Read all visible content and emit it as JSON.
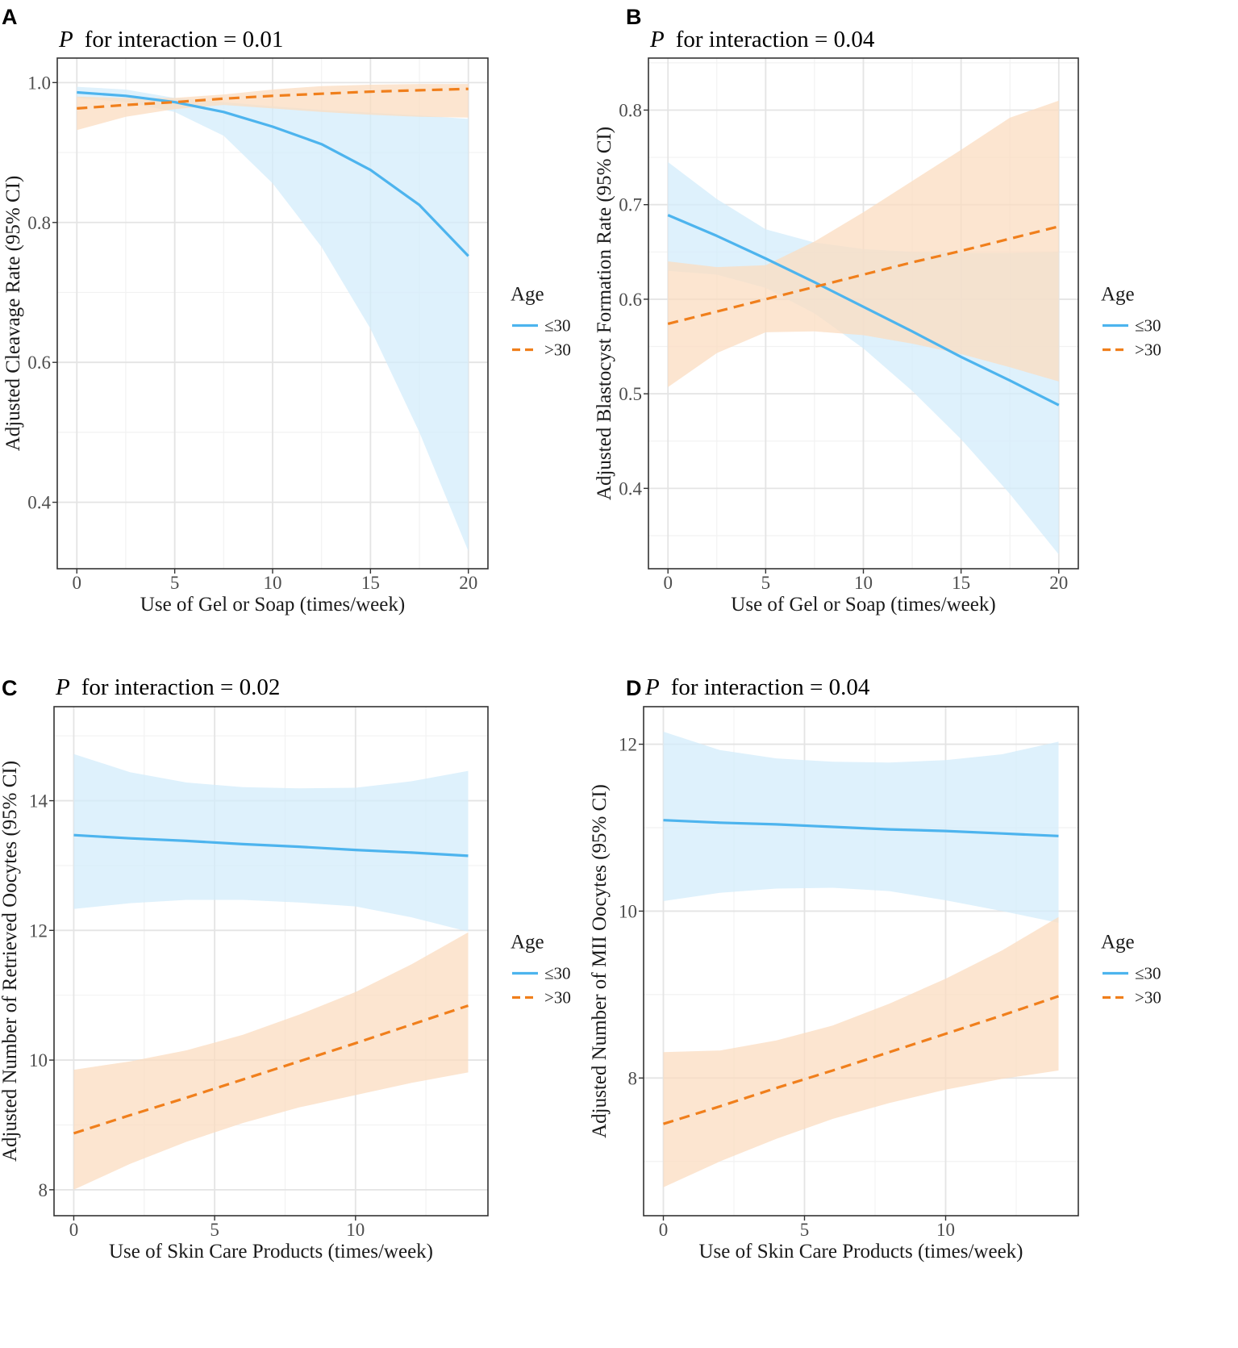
{
  "colors": {
    "young_line": "#4db4ee",
    "young_band": "#d3ecfb",
    "old_line": "#f07f1c",
    "old_band": "#fbdcc0",
    "grid_major": "#e4e4e4",
    "grid_minor": "#f2f2f2",
    "frame": "#333333"
  },
  "chart_data": [
    {
      "panel": "A",
      "type": "line",
      "title_italic": "P",
      "title_rest": "for interaction = 0.01",
      "xlabel": "Use of Gel or Soap (times/week)",
      "ylabel": "Adjusted Cleavage Rate (95% CI)",
      "xlim": [
        -1,
        21
      ],
      "ylim": [
        0.305,
        1.035
      ],
      "xticks": [
        0,
        5,
        10,
        15,
        20
      ],
      "xtick_labels": [
        "0",
        "5",
        "10",
        "15",
        "20"
      ],
      "yticks": [
        0.4,
        0.6,
        0.8,
        1.0
      ],
      "ytick_labels": [
        "0.4",
        "0.6",
        "0.8",
        "1.0"
      ],
      "legend": {
        "title": "Age",
        "entries": [
          "≤30",
          ">30"
        ],
        "position": "right"
      },
      "series": [
        {
          "name": "≤30",
          "style": "solid",
          "x": [
            0,
            2.5,
            5,
            7.5,
            10,
            12.5,
            15,
            17.5,
            20
          ],
          "y": [
            0.986,
            0.981,
            0.972,
            0.958,
            0.937,
            0.912,
            0.875,
            0.825,
            0.752
          ],
          "lower": [
            0.978,
            0.972,
            0.958,
            0.924,
            0.856,
            0.765,
            0.648,
            0.5,
            0.33
          ],
          "upper": [
            0.994,
            0.99,
            0.978,
            0.972,
            0.966,
            0.961,
            0.957,
            0.953,
            0.948
          ]
        },
        {
          "name": ">30",
          "style": "dashed",
          "x": [
            0,
            2.5,
            5,
            7.5,
            10,
            12.5,
            15,
            17.5,
            20
          ],
          "y": [
            0.963,
            0.968,
            0.972,
            0.977,
            0.981,
            0.984,
            0.987,
            0.989,
            0.991
          ],
          "lower": [
            0.932,
            0.951,
            0.962,
            0.968,
            0.963,
            0.958,
            0.954,
            0.951,
            0.95
          ],
          "upper": [
            0.98,
            0.978,
            0.978,
            0.983,
            0.99,
            0.995,
            0.997,
            0.998,
            0.998
          ]
        }
      ]
    },
    {
      "panel": "B",
      "type": "line",
      "title_italic": "P",
      "title_rest": "for interaction = 0.04",
      "xlabel": "Use of Gel or Soap (times/week)",
      "ylabel": "Adjusted Blastocyst Formation Rate (95% CI)",
      "xlim": [
        -1,
        21
      ],
      "ylim": [
        0.315,
        0.855
      ],
      "xticks": [
        0,
        5,
        10,
        15,
        20
      ],
      "xtick_labels": [
        "0",
        "5",
        "10",
        "15",
        "20"
      ],
      "yticks": [
        0.4,
        0.5,
        0.6,
        0.7,
        0.8
      ],
      "ytick_labels": [
        "0.4",
        "0.5",
        "0.6",
        "0.7",
        "0.8"
      ],
      "legend": {
        "title": "Age",
        "entries": [
          "≤30",
          ">30"
        ],
        "position": "right"
      },
      "series": [
        {
          "name": "≤30",
          "style": "solid",
          "x": [
            0,
            2.5,
            5,
            7.5,
            10,
            12.5,
            15,
            17.5,
            20
          ],
          "y": [
            0.689,
            0.667,
            0.643,
            0.618,
            0.592,
            0.566,
            0.539,
            0.514,
            0.488
          ],
          "lower": [
            0.63,
            0.626,
            0.612,
            0.585,
            0.548,
            0.503,
            0.452,
            0.394,
            0.33
          ],
          "upper": [
            0.745,
            0.706,
            0.674,
            0.66,
            0.653,
            0.65,
            0.649,
            0.649,
            0.65
          ]
        },
        {
          "name": ">30",
          "style": "dashed",
          "x": [
            0,
            2.5,
            5,
            7.5,
            10,
            12.5,
            15,
            17.5,
            20
          ],
          "y": [
            0.574,
            0.587,
            0.6,
            0.613,
            0.626,
            0.639,
            0.651,
            0.664,
            0.677
          ],
          "lower": [
            0.507,
            0.543,
            0.565,
            0.566,
            0.562,
            0.553,
            0.542,
            0.528,
            0.513
          ],
          "upper": [
            0.64,
            0.634,
            0.636,
            0.661,
            0.692,
            0.725,
            0.758,
            0.792,
            0.81
          ]
        }
      ]
    },
    {
      "panel": "C",
      "type": "line",
      "title_italic": "P",
      "title_rest": "for interaction = 0.02",
      "xlabel": "Use of Skin Care Products (times/week)",
      "ylabel": "Adjusted Number of Retrieved Oocytes (95% CI)",
      "xlim": [
        -0.7,
        14.7
      ],
      "ylim": [
        7.6,
        15.45
      ],
      "xticks": [
        0,
        5,
        10
      ],
      "xtick_labels": [
        "0",
        "5",
        "10"
      ],
      "yticks": [
        8,
        10,
        12,
        14
      ],
      "ytick_labels": [
        "8",
        "10",
        "12",
        "14"
      ],
      "legend": {
        "title": "Age",
        "entries": [
          "≤30",
          ">30"
        ],
        "position": "right"
      },
      "series": [
        {
          "name": "≤30",
          "style": "solid",
          "x": [
            0,
            2,
            4,
            6,
            8,
            10,
            12,
            14
          ],
          "y": [
            13.47,
            13.42,
            13.38,
            13.33,
            13.29,
            13.24,
            13.2,
            13.15
          ],
          "lower": [
            12.33,
            12.42,
            12.47,
            12.47,
            12.43,
            12.37,
            12.2,
            11.98
          ],
          "upper": [
            14.72,
            14.44,
            14.28,
            14.21,
            14.19,
            14.2,
            14.3,
            14.46
          ]
        },
        {
          "name": ">30",
          "style": "dashed",
          "x": [
            0,
            2,
            4,
            6,
            8,
            10,
            12,
            14
          ],
          "y": [
            8.87,
            9.15,
            9.42,
            9.7,
            9.98,
            10.26,
            10.55,
            10.84
          ],
          "lower": [
            8.0,
            8.4,
            8.74,
            9.03,
            9.27,
            9.46,
            9.65,
            9.81
          ],
          "upper": [
            9.85,
            9.98,
            10.15,
            10.39,
            10.7,
            11.05,
            11.48,
            11.97
          ]
        }
      ]
    },
    {
      "panel": "D",
      "type": "line",
      "title_italic": "P",
      "title_rest": "for interaction = 0.04",
      "xlabel": "Use of Skin Care Products (times/week)",
      "ylabel": "Adjusted Number of MII Oocytes (95% CI)",
      "xlim": [
        -0.7,
        14.7
      ],
      "ylim": [
        6.35,
        12.45
      ],
      "xticks": [
        0,
        5,
        10
      ],
      "xtick_labels": [
        "0",
        "5",
        "10"
      ],
      "yticks": [
        8,
        10,
        12
      ],
      "ytick_labels": [
        "8",
        "10",
        "12"
      ],
      "legend": {
        "title": "Age",
        "entries": [
          "≤30",
          ">30"
        ],
        "position": "right"
      },
      "series": [
        {
          "name": "≤30",
          "style": "solid",
          "x": [
            0,
            2,
            4,
            6,
            8,
            10,
            12,
            14
          ],
          "y": [
            11.09,
            11.06,
            11.04,
            11.01,
            10.98,
            10.96,
            10.93,
            10.9
          ],
          "lower": [
            10.12,
            10.22,
            10.27,
            10.28,
            10.24,
            10.13,
            10.0,
            9.86
          ],
          "upper": [
            12.15,
            11.93,
            11.83,
            11.79,
            11.78,
            11.81,
            11.88,
            12.03
          ]
        },
        {
          "name": ">30",
          "style": "dashed",
          "x": [
            0,
            2,
            4,
            6,
            8,
            10,
            12,
            14
          ],
          "y": [
            7.45,
            7.66,
            7.88,
            8.09,
            8.31,
            8.53,
            8.75,
            8.98
          ],
          "lower": [
            6.69,
            7.0,
            7.27,
            7.51,
            7.7,
            7.86,
            7.99,
            8.09
          ],
          "upper": [
            8.31,
            8.33,
            8.45,
            8.63,
            8.89,
            9.19,
            9.53,
            9.93
          ]
        }
      ]
    }
  ]
}
